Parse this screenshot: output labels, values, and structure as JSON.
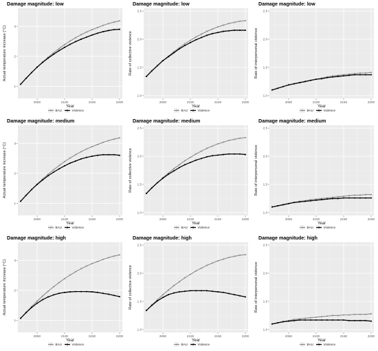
{
  "chart_data": [
    {
      "type": "line",
      "title": "Damage magnitude: low",
      "xlabel": "Year",
      "ylabel": "Actual temperature increase (°C)",
      "xlim": [
        2015,
        2205
      ],
      "ylim": [
        0.6,
        3.6
      ],
      "xticks": [
        2050,
        2100,
        2150,
        2200
      ],
      "yticks": [
        1,
        2,
        3
      ],
      "x": [
        2020,
        2030,
        2040,
        2050,
        2060,
        2070,
        2080,
        2090,
        2100,
        2110,
        2120,
        2130,
        2140,
        2150,
        2160,
        2170,
        2180,
        2190,
        2200
      ],
      "legend": [
        "BAU",
        "Violence"
      ],
      "legend_position": "bottom",
      "grid": true,
      "series": [
        {
          "name": "BAU",
          "color": "#8c8c8c",
          "values": [
            1.07,
            1.27,
            1.46,
            1.64,
            1.81,
            1.97,
            2.12,
            2.26,
            2.39,
            2.51,
            2.62,
            2.72,
            2.81,
            2.89,
            2.96,
            3.03,
            3.09,
            3.14,
            3.18
          ]
        },
        {
          "name": "Violence",
          "color": "#000000",
          "values": [
            1.07,
            1.27,
            1.46,
            1.64,
            1.8,
            1.94,
            2.07,
            2.19,
            2.3,
            2.4,
            2.49,
            2.57,
            2.64,
            2.71,
            2.77,
            2.82,
            2.86,
            2.89,
            2.9
          ]
        }
      ]
    },
    {
      "type": "line",
      "title": "Damage magnitude: low",
      "xlabel": "Year",
      "ylabel": "Rate of collective violence",
      "xlim": [
        2015,
        2205
      ],
      "ylim": [
        0.95,
        2.55
      ],
      "xticks": [
        2050,
        2100,
        2150,
        2200
      ],
      "yticks": [
        1.0,
        1.5,
        2.0,
        2.5
      ],
      "x": [
        2020,
        2030,
        2040,
        2050,
        2060,
        2070,
        2080,
        2090,
        2100,
        2110,
        2120,
        2130,
        2140,
        2150,
        2160,
        2170,
        2180,
        2190,
        2200
      ],
      "legend": [
        "BAU",
        "Violence"
      ],
      "legend_position": "bottom",
      "grid": true,
      "series": [
        {
          "name": "BAU",
          "color": "#8c8c8c",
          "values": [
            1.34,
            1.44,
            1.53,
            1.62,
            1.7,
            1.78,
            1.85,
            1.92,
            1.98,
            2.04,
            2.09,
            2.14,
            2.18,
            2.22,
            2.25,
            2.28,
            2.3,
            2.32,
            2.33
          ]
        },
        {
          "name": "Violence",
          "color": "#000000",
          "values": [
            1.34,
            1.44,
            1.53,
            1.62,
            1.69,
            1.76,
            1.83,
            1.89,
            1.94,
            1.99,
            2.03,
            2.07,
            2.1,
            2.12,
            2.14,
            2.15,
            2.16,
            2.16,
            2.16
          ]
        }
      ]
    },
    {
      "type": "line",
      "title": "Damage magnitude: low",
      "xlabel": "Year",
      "ylabel": "Rate of interpersonal violence",
      "xlim": [
        2015,
        2205
      ],
      "ylim": [
        0.95,
        2.55
      ],
      "xticks": [
        2050,
        2100,
        2150,
        2200
      ],
      "yticks": [
        1.0,
        1.5,
        2.0,
        2.5
      ],
      "x": [
        2020,
        2030,
        2040,
        2050,
        2060,
        2070,
        2080,
        2090,
        2100,
        2110,
        2120,
        2130,
        2140,
        2150,
        2160,
        2170,
        2180,
        2190,
        2200
      ],
      "legend": [
        "BAU",
        "Violence"
      ],
      "legend_position": "bottom",
      "grid": true,
      "series": [
        {
          "name": "BAU",
          "color": "#8c8c8c",
          "values": [
            1.1,
            1.13,
            1.16,
            1.19,
            1.21,
            1.23,
            1.25,
            1.27,
            1.29,
            1.31,
            1.33,
            1.35,
            1.36,
            1.37,
            1.38,
            1.39,
            1.4,
            1.4,
            1.41
          ]
        },
        {
          "name": "Violence",
          "color": "#000000",
          "values": [
            1.1,
            1.13,
            1.16,
            1.19,
            1.21,
            1.23,
            1.25,
            1.27,
            1.29,
            1.3,
            1.32,
            1.33,
            1.34,
            1.35,
            1.36,
            1.37,
            1.37,
            1.37,
            1.37
          ]
        }
      ]
    },
    {
      "type": "line",
      "title": "Damage magnitude: medium",
      "xlabel": "Year",
      "ylabel": "Actual temperature increase (°C)",
      "xlim": [
        2015,
        2205
      ],
      "ylim": [
        0.6,
        3.6
      ],
      "xticks": [
        2050,
        2100,
        2150,
        2200
      ],
      "yticks": [
        1,
        2,
        3
      ],
      "x": [
        2020,
        2030,
        2040,
        2050,
        2060,
        2070,
        2080,
        2090,
        2100,
        2110,
        2120,
        2130,
        2140,
        2150,
        2160,
        2170,
        2180,
        2190,
        2200
      ],
      "legend": [
        "BAU",
        "Violence"
      ],
      "legend_position": "bottom",
      "grid": true,
      "series": [
        {
          "name": "BAU",
          "color": "#8c8c8c",
          "values": [
            1.07,
            1.27,
            1.46,
            1.64,
            1.81,
            1.97,
            2.12,
            2.26,
            2.39,
            2.51,
            2.62,
            2.72,
            2.81,
            2.89,
            2.96,
            3.03,
            3.09,
            3.14,
            3.18
          ]
        },
        {
          "name": "Violence",
          "color": "#000000",
          "values": [
            1.07,
            1.27,
            1.46,
            1.63,
            1.78,
            1.92,
            2.04,
            2.15,
            2.25,
            2.34,
            2.41,
            2.48,
            2.53,
            2.57,
            2.6,
            2.62,
            2.62,
            2.62,
            2.6
          ]
        }
      ]
    },
    {
      "type": "line",
      "title": "Damage magnitude: medium",
      "xlabel": "Year",
      "ylabel": "Rate of collective violence",
      "xlim": [
        2015,
        2205
      ],
      "ylim": [
        0.95,
        2.55
      ],
      "xticks": [
        2050,
        2100,
        2150,
        2200
      ],
      "yticks": [
        1.0,
        1.5,
        2.0,
        2.5
      ],
      "x": [
        2020,
        2030,
        2040,
        2050,
        2060,
        2070,
        2080,
        2090,
        2100,
        2110,
        2120,
        2130,
        2140,
        2150,
        2160,
        2170,
        2180,
        2190,
        2200
      ],
      "legend": [
        "BAU",
        "Violence"
      ],
      "legend_position": "bottom",
      "grid": true,
      "series": [
        {
          "name": "BAU",
          "color": "#8c8c8c",
          "values": [
            1.34,
            1.44,
            1.53,
            1.62,
            1.7,
            1.78,
            1.85,
            1.92,
            1.98,
            2.04,
            2.09,
            2.14,
            2.18,
            2.22,
            2.25,
            2.28,
            2.3,
            2.32,
            2.33
          ]
        },
        {
          "name": "Violence",
          "color": "#000000",
          "values": [
            1.34,
            1.44,
            1.53,
            1.61,
            1.68,
            1.74,
            1.8,
            1.85,
            1.89,
            1.93,
            1.96,
            1.99,
            2.01,
            2.02,
            2.03,
            2.04,
            2.04,
            2.04,
            2.03
          ]
        }
      ]
    },
    {
      "type": "line",
      "title": "Damage magnitude: medium",
      "xlabel": "Year",
      "ylabel": "Rate of interpersonal violence",
      "xlim": [
        2015,
        2205
      ],
      "ylim": [
        0.95,
        2.55
      ],
      "xticks": [
        2050,
        2100,
        2150,
        2200
      ],
      "yticks": [
        1.0,
        1.5,
        2.0,
        2.5
      ],
      "x": [
        2020,
        2030,
        2040,
        2050,
        2060,
        2070,
        2080,
        2090,
        2100,
        2110,
        2120,
        2130,
        2140,
        2150,
        2160,
        2170,
        2180,
        2190,
        2200
      ],
      "legend": [
        "BAU",
        "Violence"
      ],
      "legend_position": "bottom",
      "grid": true,
      "series": [
        {
          "name": "BAU",
          "color": "#8c8c8c",
          "values": [
            1.1,
            1.12,
            1.14,
            1.16,
            1.18,
            1.2,
            1.21,
            1.23,
            1.24,
            1.25,
            1.26,
            1.27,
            1.28,
            1.29,
            1.3,
            1.31,
            1.31,
            1.32,
            1.32
          ]
        },
        {
          "name": "Violence",
          "color": "#000000",
          "values": [
            1.1,
            1.12,
            1.14,
            1.16,
            1.18,
            1.19,
            1.2,
            1.21,
            1.22,
            1.23,
            1.24,
            1.25,
            1.25,
            1.26,
            1.26,
            1.26,
            1.26,
            1.26,
            1.26
          ]
        }
      ]
    },
    {
      "type": "line",
      "title": "Damage magnitude: high",
      "xlabel": "Year",
      "ylabel": "Actual temperature increase (°C)",
      "xlim": [
        2015,
        2205
      ],
      "ylim": [
        0.6,
        3.6
      ],
      "xticks": [
        2050,
        2100,
        2150,
        2200
      ],
      "yticks": [
        1,
        2,
        3
      ],
      "x": [
        2020,
        2030,
        2040,
        2050,
        2060,
        2070,
        2080,
        2090,
        2100,
        2110,
        2120,
        2130,
        2140,
        2150,
        2160,
        2170,
        2180,
        2190,
        2200
      ],
      "legend": [
        "BAU",
        "Violence"
      ],
      "legend_position": "bottom",
      "grid": true,
      "series": [
        {
          "name": "BAU",
          "color": "#8c8c8c",
          "values": [
            1.07,
            1.27,
            1.46,
            1.64,
            1.81,
            1.97,
            2.12,
            2.26,
            2.39,
            2.51,
            2.62,
            2.72,
            2.81,
            2.89,
            2.96,
            3.03,
            3.09,
            3.14,
            3.18
          ]
        },
        {
          "name": "Violence",
          "color": "#000000",
          "values": [
            1.07,
            1.26,
            1.43,
            1.57,
            1.69,
            1.78,
            1.85,
            1.9,
            1.93,
            1.95,
            1.96,
            1.96,
            1.96,
            1.95,
            1.93,
            1.9,
            1.87,
            1.83,
            1.79
          ]
        }
      ]
    },
    {
      "type": "line",
      "title": "Damage magnitude: high",
      "xlabel": "Year",
      "ylabel": "Rate of collective violence",
      "xlim": [
        2015,
        2205
      ],
      "ylim": [
        0.95,
        2.55
      ],
      "xticks": [
        2050,
        2100,
        2150,
        2200
      ],
      "yticks": [
        1.0,
        1.5,
        2.0,
        2.5
      ],
      "x": [
        2020,
        2030,
        2040,
        2050,
        2060,
        2070,
        2080,
        2090,
        2100,
        2110,
        2120,
        2130,
        2140,
        2150,
        2160,
        2170,
        2180,
        2190,
        2200
      ],
      "legend": [
        "BAU",
        "Violence"
      ],
      "legend_position": "bottom",
      "grid": true,
      "series": [
        {
          "name": "BAU",
          "color": "#8c8c8c",
          "values": [
            1.34,
            1.44,
            1.53,
            1.62,
            1.7,
            1.78,
            1.85,
            1.92,
            1.98,
            2.04,
            2.09,
            2.14,
            2.18,
            2.22,
            2.25,
            2.28,
            2.3,
            2.32,
            2.33
          ]
        },
        {
          "name": "Violence",
          "color": "#000000",
          "values": [
            1.34,
            1.43,
            1.51,
            1.57,
            1.62,
            1.65,
            1.67,
            1.68,
            1.69,
            1.69,
            1.69,
            1.69,
            1.68,
            1.67,
            1.66,
            1.64,
            1.62,
            1.6,
            1.58
          ]
        }
      ]
    },
    {
      "type": "line",
      "title": "Damage magnitude: high",
      "xlabel": "Year",
      "ylabel": "Rate of interpersonal violence",
      "xlim": [
        2015,
        2205
      ],
      "ylim": [
        0.95,
        2.55
      ],
      "xticks": [
        2050,
        2100,
        2150,
        2200
      ],
      "yticks": [
        1.0,
        1.5,
        2.0,
        2.5
      ],
      "x": [
        2020,
        2030,
        2040,
        2050,
        2060,
        2070,
        2080,
        2090,
        2100,
        2110,
        2120,
        2130,
        2140,
        2150,
        2160,
        2170,
        2180,
        2190,
        2200
      ],
      "legend": [
        "BAU",
        "Violence"
      ],
      "legend_position": "bottom",
      "grid": true,
      "series": [
        {
          "name": "BAU",
          "color": "#8c8c8c",
          "values": [
            1.1,
            1.12,
            1.14,
            1.16,
            1.18,
            1.19,
            1.2,
            1.21,
            1.22,
            1.23,
            1.24,
            1.25,
            1.25,
            1.26,
            1.26,
            1.27,
            1.27,
            1.27,
            1.28
          ]
        },
        {
          "name": "Violence",
          "color": "#000000",
          "values": [
            1.1,
            1.12,
            1.14,
            1.15,
            1.16,
            1.17,
            1.17,
            1.17,
            1.17,
            1.17,
            1.17,
            1.17,
            1.17,
            1.17,
            1.16,
            1.16,
            1.16,
            1.16,
            1.15
          ]
        }
      ]
    }
  ]
}
